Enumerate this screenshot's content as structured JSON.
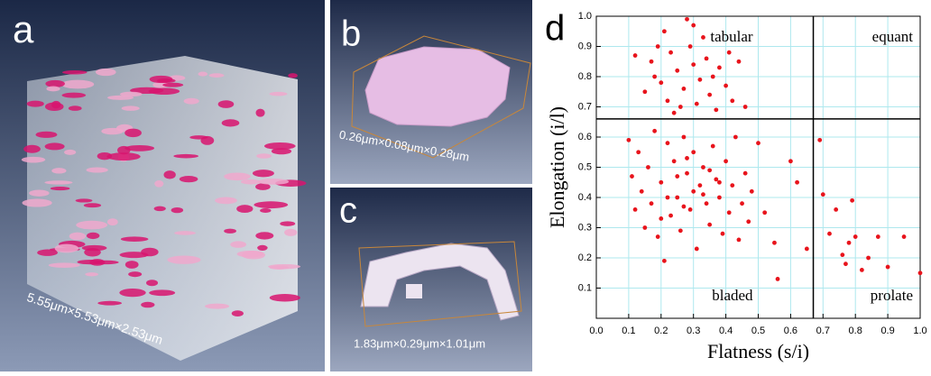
{
  "panels": [
    {
      "label": "a",
      "caption": "5.55μm×5.53μm×2.53μm"
    },
    {
      "label": "b",
      "caption": "0.26μm×0.08μm×0.28μm"
    },
    {
      "label": "c",
      "caption": "1.83μm×0.29μm×1.01μm"
    }
  ],
  "chart_data": {
    "type": "scatter",
    "label": "d",
    "xlabel": "Flatness (s/i)",
    "ylabel": "Elongation (i/l)",
    "xlim": [
      0,
      1
    ],
    "ylim": [
      0,
      1
    ],
    "xticks": [
      {
        "value": 0,
        "label": "0.0"
      },
      0.1,
      0.2,
      0.3,
      0.4,
      0.5,
      0.6,
      0.7,
      0.8,
      0.9,
      {
        "value": 1,
        "label": "1.0"
      }
    ],
    "yticks": [
      0.1,
      0.2,
      0.3,
      0.4,
      0.5,
      0.6,
      0.7,
      0.8,
      0.9,
      {
        "value": 1,
        "label": "1.0"
      }
    ],
    "grid": true,
    "dividers": {
      "x": 0.67,
      "y": 0.66
    },
    "annotations": [
      "tabular",
      "equant",
      "bladed",
      "prolate"
    ],
    "color": "#e8141c",
    "x": [
      0.12,
      0.15,
      0.17,
      0.18,
      0.2,
      0.21,
      0.22,
      0.23,
      0.25,
      0.26,
      0.27,
      0.28,
      0.29,
      0.3,
      0.31,
      0.32,
      0.33,
      0.34,
      0.35,
      0.36,
      0.38,
      0.4,
      0.42,
      0.44,
      0.46,
      0.24,
      0.19,
      0.37,
      0.3,
      0.41,
      0.1,
      0.11,
      0.12,
      0.13,
      0.14,
      0.15,
      0.16,
      0.17,
      0.18,
      0.19,
      0.2,
      0.21,
      0.22,
      0.23,
      0.24,
      0.25,
      0.26,
      0.27,
      0.28,
      0.29,
      0.3,
      0.31,
      0.32,
      0.33,
      0.34,
      0.35,
      0.36,
      0.37,
      0.38,
      0.39,
      0.4,
      0.41,
      0.42,
      0.43,
      0.44,
      0.45,
      0.46,
      0.47,
      0.48,
      0.5,
      0.52,
      0.2,
      0.25,
      0.3,
      0.35,
      0.28,
      0.33,
      0.38,
      0.22,
      0.27,
      0.55,
      0.56,
      0.6,
      0.62,
      0.65,
      0.69,
      0.7,
      0.72,
      0.74,
      0.76,
      0.77,
      0.78,
      0.79,
      0.8,
      0.82,
      0.84,
      0.87,
      0.9,
      0.95,
      1.0
    ],
    "y": [
      0.87,
      0.75,
      0.85,
      0.8,
      0.78,
      0.95,
      0.72,
      0.88,
      0.82,
      0.7,
      0.76,
      0.99,
      0.9,
      0.84,
      0.71,
      0.79,
      0.93,
      0.86,
      0.74,
      0.8,
      0.83,
      0.77,
      0.72,
      0.85,
      0.7,
      0.68,
      0.9,
      0.69,
      0.97,
      0.88,
      0.59,
      0.47,
      0.36,
      0.55,
      0.42,
      0.3,
      0.5,
      0.38,
      0.62,
      0.27,
      0.45,
      0.19,
      0.58,
      0.34,
      0.52,
      0.4,
      0.29,
      0.6,
      0.48,
      0.36,
      0.55,
      0.23,
      0.44,
      0.5,
      0.38,
      0.31,
      0.57,
      0.46,
      0.4,
      0.28,
      0.52,
      0.35,
      0.44,
      0.6,
      0.26,
      0.38,
      0.48,
      0.32,
      0.42,
      0.58,
      0.35,
      0.33,
      0.47,
      0.42,
      0.49,
      0.53,
      0.41,
      0.45,
      0.4,
      0.37,
      0.25,
      0.13,
      0.52,
      0.45,
      0.23,
      0.59,
      0.41,
      0.28,
      0.36,
      0.21,
      0.18,
      0.25,
      0.39,
      0.27,
      0.16,
      0.2,
      0.27,
      0.17,
      0.27,
      0.15
    ]
  }
}
